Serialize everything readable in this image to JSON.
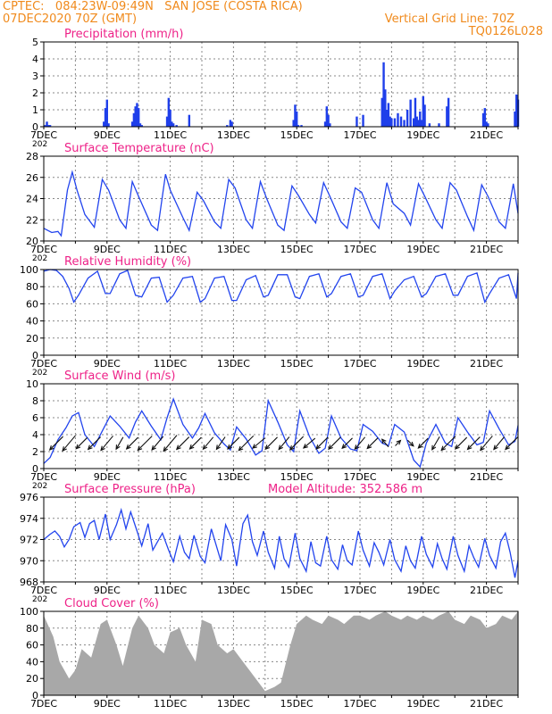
{
  "header": {
    "line1": "CPTEC:   084:23W-09:49N   SAN JOSE (COSTA RICA)",
    "line2": "07DEC2020 70Z (GMT)",
    "right1": "Vertical Grid Line: 70Z",
    "right2": "TQ0126L028"
  },
  "colors": {
    "title": "#ee2288",
    "header": "#f08a1c",
    "line": "#2244ee",
    "bar": "#1f3fea",
    "cloud": "#a8a8a8",
    "grid": "#888888"
  },
  "x_axis": {
    "start_day": 7,
    "end_day": 22,
    "tick_labels": [
      "7DEC",
      "9DEC",
      "11DEC",
      "13DEC",
      "15DEC",
      "17DEC",
      "19DEC",
      "21DEC"
    ],
    "year_fragment": "202"
  },
  "chart_data": [
    {
      "id": "precip",
      "type": "bar",
      "title": "Precipitation (mm/h)",
      "ylim": [
        0,
        5
      ],
      "yticks": [
        0,
        1,
        2,
        3,
        4,
        5
      ],
      "grid": true,
      "x_days": [
        7.05,
        7.1,
        7.15,
        7.2,
        8.9,
        8.95,
        9.0,
        9.05,
        9.8,
        9.85,
        9.9,
        9.95,
        10.0,
        10.05,
        10.1,
        10.9,
        10.95,
        11.0,
        11.05,
        11.1,
        11.2,
        11.6,
        12.8,
        12.9,
        12.95,
        14.9,
        14.95,
        15.0,
        15.05,
        15.15,
        15.9,
        15.95,
        16.0,
        16.05,
        16.9,
        17.1,
        17.7,
        17.75,
        17.8,
        17.85,
        17.9,
        17.95,
        18.0,
        18.1,
        18.2,
        18.3,
        18.4,
        18.5,
        18.6,
        18.7,
        18.75,
        18.8,
        18.85,
        18.9,
        18.95,
        19.0,
        19.05,
        19.2,
        19.5,
        19.75,
        19.8,
        20.9,
        20.95,
        21.0,
        21.05,
        21.9,
        21.95,
        22.0
      ],
      "values": [
        0.1,
        0.3,
        0.1,
        0.1,
        0.3,
        1.1,
        1.6,
        0.2,
        0.3,
        0.8,
        1.2,
        1.4,
        1.1,
        0.2,
        0.1,
        0.6,
        1.7,
        1.0,
        0.3,
        0.2,
        0.1,
        0.7,
        0.1,
        0.4,
        0.3,
        0.4,
        1.3,
        0.9,
        0.1,
        0.1,
        0.3,
        1.2,
        0.7,
        0.2,
        0.6,
        0.7,
        1.7,
        3.8,
        2.2,
        1.0,
        1.4,
        0.6,
        0.5,
        0.5,
        0.8,
        0.6,
        0.4,
        1.0,
        1.6,
        0.5,
        1.7,
        0.6,
        0.4,
        0.9,
        0.4,
        1.8,
        1.3,
        0.2,
        0.2,
        1.2,
        1.7,
        0.8,
        1.1,
        0.3,
        0.2,
        0.9,
        1.9,
        1.6
      ]
    },
    {
      "id": "temp",
      "type": "line",
      "title": "Surface Temperature (nC)",
      "ylim": [
        20,
        28
      ],
      "yticks": [
        20,
        22,
        24,
        26,
        28
      ],
      "grid": true,
      "x_days": [
        7.0,
        7.25,
        7.45,
        7.55,
        7.75,
        7.9,
        8.05,
        8.3,
        8.6,
        8.85,
        9.05,
        9.4,
        9.6,
        9.8,
        10.0,
        10.4,
        10.6,
        10.85,
        11.0,
        11.4,
        11.6,
        11.85,
        12.05,
        12.4,
        12.6,
        12.85,
        13.05,
        13.4,
        13.6,
        13.85,
        14.05,
        14.4,
        14.6,
        14.85,
        15.05,
        15.4,
        15.6,
        15.85,
        16.05,
        16.4,
        16.6,
        16.85,
        17.05,
        17.4,
        17.6,
        17.85,
        18.05,
        18.4,
        18.6,
        18.85,
        19.05,
        19.4,
        19.6,
        19.85,
        20.05,
        20.4,
        20.6,
        20.85,
        21.05,
        21.4,
        21.6,
        21.85,
        22.0
      ],
      "values": [
        21.2,
        20.8,
        20.9,
        20.5,
        24.8,
        26.5,
        24.8,
        22.5,
        21.3,
        25.8,
        24.8,
        22.0,
        21.2,
        25.6,
        24.2,
        21.5,
        21.0,
        26.3,
        24.8,
        22.2,
        21.0,
        24.6,
        23.8,
        21.8,
        21.2,
        25.8,
        25.0,
        22.0,
        21.2,
        25.6,
        24.0,
        21.5,
        21.0,
        25.2,
        24.3,
        22.5,
        21.7,
        25.5,
        24.2,
        21.8,
        21.2,
        25.0,
        24.6,
        22.0,
        21.2,
        25.5,
        23.5,
        22.6,
        21.5,
        25.4,
        24.2,
        22.0,
        21.2,
        25.5,
        24.8,
        22.3,
        21.0,
        25.3,
        24.2,
        21.8,
        21.2,
        25.4,
        22.6
      ]
    },
    {
      "id": "rh",
      "type": "line",
      "title": "Relative Humidity (%)",
      "ylim": [
        0,
        100
      ],
      "yticks": [
        0,
        20,
        40,
        60,
        80,
        100
      ],
      "grid": true,
      "x_days": [
        7.0,
        7.2,
        7.4,
        7.6,
        7.8,
        7.95,
        8.1,
        8.4,
        8.7,
        8.95,
        9.1,
        9.4,
        9.65,
        9.9,
        10.1,
        10.4,
        10.65,
        10.9,
        11.1,
        11.4,
        11.7,
        11.95,
        12.1,
        12.4,
        12.7,
        12.95,
        13.1,
        13.4,
        13.7,
        13.95,
        14.1,
        14.4,
        14.7,
        14.95,
        15.1,
        15.4,
        15.7,
        15.95,
        16.1,
        16.4,
        16.7,
        16.95,
        17.1,
        17.4,
        17.7,
        17.95,
        18.1,
        18.4,
        18.7,
        18.95,
        19.1,
        19.4,
        19.7,
        19.95,
        20.1,
        20.4,
        20.7,
        20.95,
        21.1,
        21.4,
        21.7,
        21.95,
        22.0
      ],
      "values": [
        98,
        100,
        99,
        92,
        78,
        62,
        70,
        90,
        98,
        72,
        72,
        95,
        99,
        70,
        68,
        90,
        91,
        62,
        70,
        90,
        92,
        62,
        66,
        90,
        92,
        64,
        64,
        88,
        93,
        68,
        70,
        94,
        94,
        68,
        66,
        92,
        95,
        68,
        72,
        92,
        95,
        68,
        70,
        92,
        95,
        66,
        75,
        88,
        92,
        68,
        72,
        92,
        95,
        70,
        70,
        92,
        96,
        62,
        72,
        90,
        94,
        66,
        96
      ]
    },
    {
      "id": "wind",
      "type": "line",
      "title": "Surface Wind (m/s)",
      "ylim": [
        0,
        10
      ],
      "yticks": [
        0,
        2,
        4,
        6,
        8,
        10
      ],
      "grid": true,
      "x_days": [
        7.0,
        7.2,
        7.45,
        7.7,
        7.9,
        8.1,
        8.3,
        8.6,
        8.9,
        9.1,
        9.4,
        9.7,
        9.9,
        10.1,
        10.4,
        10.7,
        10.9,
        11.1,
        11.4,
        11.7,
        11.9,
        12.1,
        12.4,
        12.7,
        12.9,
        13.1,
        13.4,
        13.7,
        13.9,
        14.1,
        14.4,
        14.7,
        14.9,
        15.1,
        15.4,
        15.7,
        15.9,
        16.1,
        16.4,
        16.7,
        16.9,
        17.1,
        17.4,
        17.7,
        17.9,
        18.1,
        18.4,
        18.7,
        18.9,
        19.1,
        19.4,
        19.7,
        19.9,
        20.1,
        20.4,
        20.7,
        20.9,
        21.1,
        21.4,
        21.7,
        21.9,
        22.0
      ],
      "values": [
        0.6,
        1.3,
        3.4,
        4.8,
        6.2,
        6.6,
        4.0,
        2.6,
        4.8,
        6.2,
        5.0,
        3.6,
        5.5,
        6.8,
        5.0,
        3.4,
        6.0,
        8.2,
        5.2,
        3.6,
        4.8,
        6.5,
        4.2,
        2.9,
        2.2,
        4.9,
        3.5,
        1.6,
        2.1,
        8.0,
        5.5,
        2.8,
        2.0,
        6.8,
        3.8,
        1.8,
        2.4,
        6.2,
        3.6,
        2.3,
        2.1,
        5.2,
        4.4,
        3.0,
        2.7,
        5.2,
        4.3,
        1.0,
        0.2,
        3.0,
        5.2,
        3.0,
        2.6,
        6.0,
        4.3,
        2.8,
        3.1,
        6.8,
        4.7,
        2.8,
        3.2,
        5.1
      ]
    },
    {
      "id": "pressure",
      "type": "line",
      "title": "Surface Pressure (hPa)",
      "annotation": "Model Altitude: 352.586 m",
      "ylim": [
        968,
        976
      ],
      "yticks": [
        968,
        970,
        972,
        974,
        976
      ],
      "grid": true,
      "x_days": [
        7.0,
        7.2,
        7.35,
        7.5,
        7.65,
        7.8,
        7.95,
        8.15,
        8.3,
        8.45,
        8.6,
        8.75,
        8.95,
        9.1,
        9.3,
        9.45,
        9.6,
        9.75,
        9.95,
        10.1,
        10.3,
        10.45,
        10.6,
        10.75,
        10.95,
        11.1,
        11.3,
        11.45,
        11.6,
        11.75,
        11.95,
        12.1,
        12.3,
        12.45,
        12.6,
        12.75,
        12.95,
        13.1,
        13.3,
        13.45,
        13.6,
        13.75,
        13.95,
        14.1,
        14.3,
        14.45,
        14.6,
        14.75,
        14.95,
        15.1,
        15.3,
        15.45,
        15.6,
        15.75,
        15.95,
        16.1,
        16.3,
        16.45,
        16.6,
        16.75,
        16.95,
        17.1,
        17.3,
        17.45,
        17.6,
        17.75,
        17.95,
        18.1,
        18.3,
        18.45,
        18.6,
        18.75,
        18.95,
        19.1,
        19.3,
        19.45,
        19.6,
        19.75,
        19.95,
        20.1,
        20.3,
        20.45,
        20.6,
        20.75,
        20.95,
        21.1,
        21.3,
        21.45,
        21.6,
        21.75,
        21.9,
        22.0
      ],
      "values": [
        972.0,
        972.5,
        972.8,
        972.3,
        971.3,
        972.0,
        973.2,
        973.6,
        972.2,
        973.5,
        973.8,
        972.0,
        974.4,
        972.0,
        973.4,
        974.8,
        973.0,
        974.6,
        972.8,
        971.4,
        973.5,
        971.0,
        971.8,
        972.6,
        971.0,
        969.9,
        972.3,
        970.8,
        970.2,
        972.4,
        970.4,
        969.8,
        973.0,
        971.5,
        970.0,
        973.4,
        972.0,
        969.5,
        973.5,
        974.3,
        971.8,
        970.5,
        972.8,
        970.8,
        969.3,
        972.3,
        970.2,
        969.4,
        972.6,
        970.2,
        969.0,
        971.8,
        969.8,
        969.5,
        972.3,
        970.1,
        969.2,
        971.5,
        970.0,
        969.6,
        972.8,
        971.0,
        969.5,
        971.7,
        970.8,
        969.6,
        972.0,
        970.1,
        969.0,
        971.4,
        970.0,
        969.3,
        972.3,
        970.6,
        969.4,
        971.6,
        970.2,
        969.2,
        972.3,
        970.5,
        969.0,
        971.4,
        970.3,
        969.4,
        972.1,
        970.5,
        969.3,
        971.8,
        972.6,
        970.8,
        968.4,
        970.0
      ]
    },
    {
      "id": "cloud",
      "type": "area",
      "title": "Cloud Cover (%)",
      "ylim": [
        0,
        100
      ],
      "yticks": [
        0,
        20,
        40,
        60,
        80,
        100
      ],
      "grid": true,
      "x_days": [
        7.0,
        7.3,
        7.5,
        7.8,
        8.0,
        8.2,
        8.5,
        8.8,
        9.0,
        9.3,
        9.5,
        9.8,
        10.0,
        10.3,
        10.5,
        10.8,
        11.0,
        11.3,
        11.5,
        11.8,
        12.0,
        12.3,
        12.5,
        12.8,
        13.0,
        13.3,
        13.5,
        13.8,
        14.0,
        14.3,
        14.5,
        14.8,
        15.0,
        15.3,
        15.5,
        15.8,
        16.0,
        16.3,
        16.5,
        16.8,
        17.0,
        17.3,
        17.5,
        17.8,
        18.0,
        18.3,
        18.5,
        18.8,
        19.0,
        19.3,
        19.5,
        19.8,
        20.0,
        20.3,
        20.5,
        20.8,
        21.0,
        21.3,
        21.5,
        21.8,
        22.0
      ],
      "values": [
        95,
        70,
        40,
        20,
        30,
        55,
        45,
        85,
        90,
        60,
        35,
        80,
        95,
        80,
        60,
        50,
        75,
        80,
        60,
        40,
        90,
        85,
        60,
        50,
        55,
        40,
        30,
        15,
        5,
        10,
        15,
        60,
        85,
        95,
        90,
        85,
        95,
        90,
        85,
        95,
        95,
        90,
        95,
        100,
        95,
        90,
        95,
        90,
        95,
        90,
        95,
        100,
        90,
        85,
        95,
        90,
        80,
        85,
        95,
        90,
        100
      ]
    }
  ],
  "wind_barbs": {
    "x_days": [
      7.4,
      7.8,
      8.2,
      8.6,
      9.0,
      9.4,
      9.8,
      10.2,
      10.6,
      11.0,
      11.4,
      11.8,
      12.2,
      12.6,
      13.0,
      13.4,
      13.8,
      14.2,
      14.6,
      15.0,
      15.4,
      15.8,
      16.2,
      16.6,
      17.0,
      17.4,
      17.8,
      18.2,
      18.6,
      19.0,
      19.4,
      19.8,
      20.2,
      20.6,
      21.0,
      21.4,
      21.8
    ],
    "direction_deg": [
      225,
      220,
      225,
      225,
      220,
      210,
      225,
      225,
      220,
      220,
      225,
      225,
      220,
      215,
      225,
      225,
      230,
      225,
      220,
      225,
      230,
      225,
      225,
      225,
      220,
      225,
      320,
      45,
      135,
      225,
      210,
      225,
      225,
      225,
      220,
      220,
      225
    ],
    "speed": [
      3.0,
      3.2,
      2.5,
      2.8,
      3.0,
      2.2,
      2.6,
      3.2,
      2.8,
      3.3,
      2.8,
      2.6,
      2.5,
      2.4,
      2.6,
      3.3,
      2.5,
      2.7,
      2.6,
      3.0,
      2.4,
      2.6,
      2.7,
      2.3,
      2.5,
      2.4,
      1.6,
      1.2,
      1.3,
      2.2,
      2.4,
      3.2,
      2.6,
      2.8,
      3.0,
      2.6,
      2.8
    ]
  }
}
